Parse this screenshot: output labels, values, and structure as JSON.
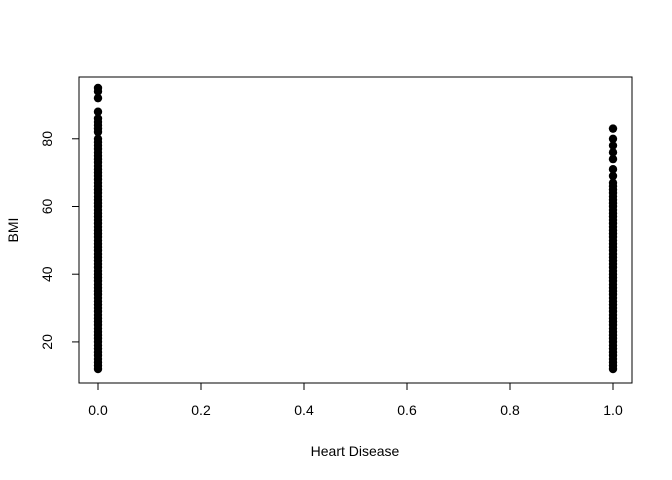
{
  "chart_data": {
    "type": "scatter",
    "title": "",
    "xlabel": "Heart Disease",
    "ylabel": "BMI",
    "xlim": [
      0,
      1
    ],
    "ylim": [
      12,
      95
    ],
    "grid": false,
    "x_ticks": [
      "0.0",
      "0.2",
      "0.4",
      "0.6",
      "0.8",
      "1.0"
    ],
    "y_ticks": [
      "20",
      "40",
      "60",
      "80"
    ],
    "point_color": "#000000",
    "series": [
      {
        "name": "",
        "x": [
          0,
          0,
          0,
          0,
          0,
          0,
          0,
          0,
          0,
          0,
          0,
          0,
          0,
          0,
          0,
          0,
          0,
          0,
          0,
          0,
          0,
          0,
          0,
          0,
          0,
          0,
          0,
          0,
          0,
          0,
          0,
          0,
          0,
          0,
          0,
          0,
          0,
          0,
          0,
          0,
          0,
          0,
          0,
          0,
          0,
          0,
          0,
          0,
          0,
          0,
          0,
          0,
          0,
          0,
          0,
          0,
          0,
          0,
          0,
          0,
          0,
          0,
          0,
          0,
          0,
          0,
          0,
          0,
          0,
          0,
          0,
          0,
          0,
          0,
          0,
          0,
          0,
          0,
          1,
          1,
          1,
          1,
          1,
          1,
          1,
          1,
          1,
          1,
          1,
          1,
          1,
          1,
          1,
          1,
          1,
          1,
          1,
          1,
          1,
          1,
          1,
          1,
          1,
          1,
          1,
          1,
          1,
          1,
          1,
          1,
          1,
          1,
          1,
          1,
          1,
          1,
          1,
          1,
          1,
          1,
          1,
          1,
          1,
          1,
          1,
          1,
          1,
          1,
          1,
          1,
          1,
          1,
          1,
          1,
          1,
          1,
          1,
          1,
          1,
          1,
          1
        ],
        "y": [
          12,
          13,
          14,
          15,
          16,
          17,
          18,
          19,
          20,
          21,
          22,
          23,
          24,
          25,
          26,
          27,
          28,
          29,
          30,
          31,
          32,
          33,
          34,
          35,
          36,
          37,
          38,
          39,
          40,
          41,
          42,
          43,
          44,
          45,
          46,
          47,
          48,
          49,
          50,
          51,
          52,
          53,
          54,
          55,
          56,
          57,
          58,
          59,
          60,
          61,
          62,
          63,
          64,
          65,
          66,
          67,
          68,
          69,
          70,
          71,
          72,
          73,
          74,
          75,
          76,
          77,
          78,
          79,
          80,
          82,
          83,
          84,
          85,
          86,
          88,
          92,
          94,
          95,
          12,
          13,
          14,
          15,
          16,
          17,
          18,
          19,
          20,
          21,
          22,
          23,
          24,
          25,
          26,
          27,
          28,
          29,
          30,
          31,
          32,
          33,
          34,
          35,
          36,
          37,
          38,
          39,
          40,
          41,
          42,
          43,
          44,
          45,
          46,
          47,
          48,
          49,
          50,
          51,
          52,
          53,
          54,
          55,
          56,
          57,
          58,
          59,
          60,
          61,
          62,
          63,
          64,
          65,
          66,
          67,
          69,
          71,
          74,
          76,
          78,
          80,
          83
        ]
      }
    ]
  }
}
